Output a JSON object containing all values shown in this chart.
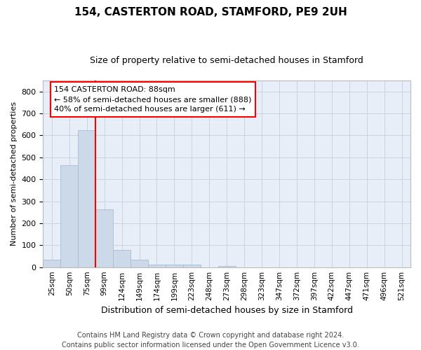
{
  "title1": "154, CASTERTON ROAD, STAMFORD, PE9 2UH",
  "title2": "Size of property relative to semi-detached houses in Stamford",
  "xlabel": "Distribution of semi-detached houses by size in Stamford",
  "ylabel": "Number of semi-detached properties",
  "footer_line1": "Contains HM Land Registry data © Crown copyright and database right 2024.",
  "footer_line2": "Contains public sector information licensed under the Open Government Licence v3.0.",
  "categories": [
    "25sqm",
    "50sqm",
    "75sqm",
    "99sqm",
    "124sqm",
    "149sqm",
    "174sqm",
    "199sqm",
    "223sqm",
    "248sqm",
    "273sqm",
    "298sqm",
    "323sqm",
    "347sqm",
    "372sqm",
    "397sqm",
    "422sqm",
    "447sqm",
    "471sqm",
    "496sqm",
    "521sqm"
  ],
  "values": [
    35,
    463,
    625,
    265,
    80,
    35,
    12,
    12,
    12,
    0,
    5,
    0,
    0,
    0,
    0,
    0,
    0,
    0,
    0,
    0,
    0
  ],
  "bar_color": "#ccd9e8",
  "bar_edge_color": "#aabcd4",
  "property_line_x": 2.5,
  "annotation_line1": "154 CASTERTON ROAD: 88sqm",
  "annotation_line2": "← 58% of semi-detached houses are smaller (888)",
  "annotation_line3": "40% of semi-detached houses are larger (611) →",
  "annotation_box_color": "white",
  "annotation_box_edge_color": "red",
  "ylim": [
    0,
    850
  ],
  "yticks": [
    0,
    100,
    200,
    300,
    400,
    500,
    600,
    700,
    800
  ],
  "grid_color": "#c8d4e4",
  "background_color": "#e8eef8",
  "title1_fontsize": 11,
  "title2_fontsize": 9,
  "xlabel_fontsize": 9,
  "ylabel_fontsize": 8,
  "tick_fontsize": 8,
  "xtick_fontsize": 7.5,
  "footer_fontsize": 7,
  "annotation_fontsize": 8
}
